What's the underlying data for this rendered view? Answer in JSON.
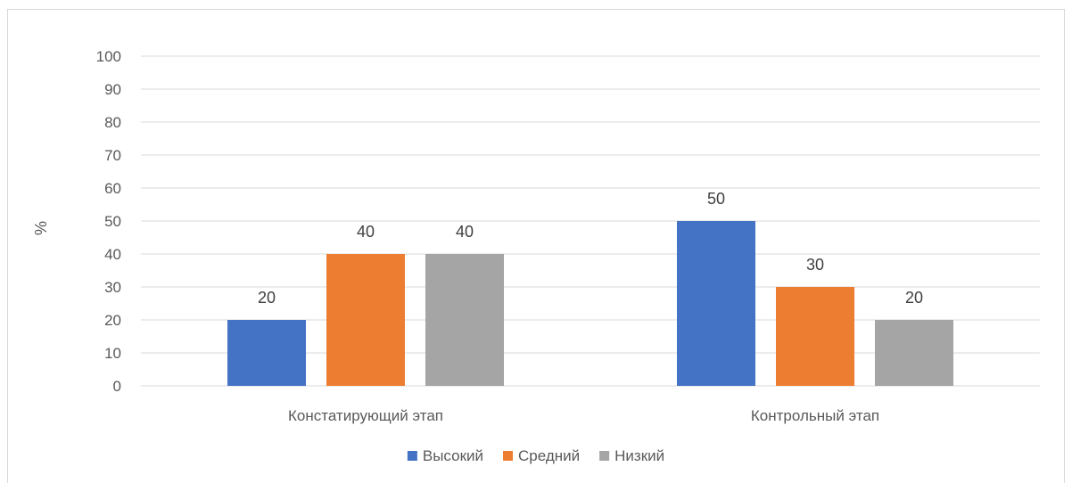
{
  "chart_data": {
    "type": "bar",
    "title": "",
    "xlabel": "",
    "ylabel": "%",
    "ylim": [
      0,
      100
    ],
    "ytick_step": 10,
    "grid": true,
    "legend_position": "bottom",
    "categories": [
      "Констатирующий этап",
      "Контрольный этап"
    ],
    "series": [
      {
        "name": "Высокий",
        "color": "#4472C4",
        "values": [
          20,
          50
        ]
      },
      {
        "name": "Средний",
        "color": "#ED7D31",
        "values": [
          40,
          30
        ]
      },
      {
        "name": "Низкий",
        "color": "#A5A5A5",
        "values": [
          40,
          20
        ]
      }
    ]
  }
}
